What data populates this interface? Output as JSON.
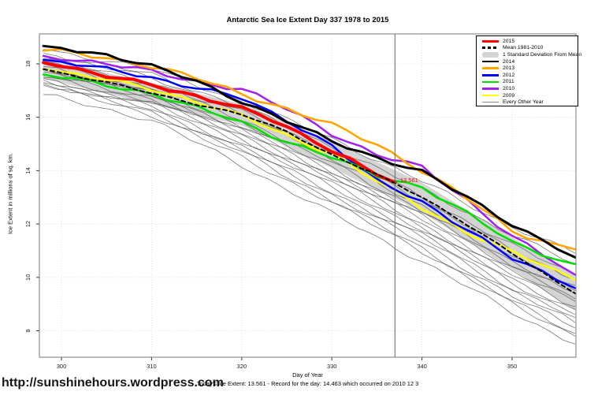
{
  "page": {
    "title": "Antarctic Sea Ice Extent Day 337 1978 to 2015",
    "site_url": "http://sunshinehours.wordpress.com",
    "footnote": "Today's Ice Extent: 13.561 - Record for the day: 14.463 which occurred on 2010 12 3"
  },
  "chart_data": {
    "type": "line",
    "title": "Antarctic Sea Ice Extent Day 337 1978 to 2015",
    "xlabel": "Day of Year",
    "ylabel": "Ice Extent in millions of sq. km.",
    "xlim": [
      297.5,
      357.5
    ],
    "ylim": [
      7.0,
      19.1
    ],
    "xticks": [
      300,
      310,
      320,
      330,
      340,
      350
    ],
    "yticks": [
      8,
      10,
      12,
      14,
      16,
      18
    ],
    "grid": "dotted",
    "marker_line_x": 337,
    "annotation": {
      "label": "13.561",
      "x": 337.4,
      "y": 13.63,
      "color": "#ff0000"
    },
    "legend_position": "top-right",
    "legend": [
      {
        "label": "2015",
        "color": "#ff0000",
        "swatch": "line"
      },
      {
        "label": "Mean 1981-2010",
        "color": "#000000",
        "swatch": "dashed"
      },
      {
        "label": "1 Standard Deviation From Mean",
        "color": "#d4d4d4",
        "swatch": "band"
      },
      {
        "label": "2014",
        "color": "#000000",
        "swatch": "med"
      },
      {
        "label": "2013",
        "color": "#ffa500",
        "swatch": "med"
      },
      {
        "label": "2012",
        "color": "#0000ff",
        "swatch": "med"
      },
      {
        "label": "2011",
        "color": "#00e000",
        "swatch": "med"
      },
      {
        "label": "2010",
        "color": "#a020f0",
        "swatch": "med"
      },
      {
        "label": "2009",
        "color": "#ffff00",
        "swatch": "med"
      },
      {
        "label": "Every Other Year",
        "color": "#8a8a8a",
        "swatch": "thin"
      }
    ],
    "band": {
      "name": "1 Standard Deviation From Mean",
      "color": "#d4d4d4",
      "x": [
        298,
        310,
        320,
        330,
        340,
        350,
        357
      ],
      "upper": [
        18.15,
        17.3,
        16.5,
        15.1,
        13.55,
        11.5,
        10.05
      ],
      "lower": [
        17.45,
        16.5,
        15.7,
        14.1,
        12.45,
        10.3,
        8.75
      ]
    },
    "series": [
      {
        "name": "2010",
        "color": "#a020f0",
        "width": 2.5,
        "dash": "",
        "wobble": 0.07,
        "x": [
          298,
          300,
          305,
          310,
          315,
          320,
          325,
          330,
          335,
          340,
          345,
          350,
          355,
          357
        ],
        "y": [
          18.3,
          18.25,
          18.0,
          17.7,
          17.35,
          17.05,
          16.3,
          15.4,
          14.6,
          14.1,
          12.9,
          11.55,
          10.5,
          10.1
        ]
      },
      {
        "name": "2009",
        "color": "#ffff00",
        "width": 2.5,
        "dash": "",
        "wobble": 0.06,
        "x": [
          298,
          300,
          305,
          310,
          315,
          320,
          325,
          330,
          335,
          340,
          345,
          350,
          355,
          357
        ],
        "y": [
          17.8,
          17.7,
          17.4,
          17.05,
          16.6,
          16.05,
          15.3,
          14.65,
          13.6,
          12.6,
          11.7,
          10.95,
          10.2,
          9.9
        ]
      },
      {
        "name": "2012",
        "color": "#0000ff",
        "width": 2.5,
        "dash": "",
        "wobble": 0.06,
        "x": [
          298,
          300,
          305,
          310,
          315,
          320,
          325,
          330,
          335,
          340,
          345,
          350,
          355,
          357
        ],
        "y": [
          18.15,
          18.05,
          17.8,
          17.5,
          17.1,
          16.7,
          15.9,
          14.95,
          13.6,
          12.85,
          11.8,
          10.7,
          9.95,
          9.6
        ]
      },
      {
        "name": "2011",
        "color": "#00e000",
        "width": 2.5,
        "dash": "",
        "wobble": 0.06,
        "x": [
          298,
          300,
          305,
          310,
          315,
          320,
          325,
          330,
          335,
          340,
          345,
          350,
          355,
          357
        ],
        "y": [
          17.6,
          17.5,
          17.2,
          16.9,
          16.35,
          15.8,
          15.1,
          14.5,
          13.8,
          13.4,
          12.4,
          11.3,
          10.7,
          10.5
        ]
      },
      {
        "name": "2013",
        "color": "#ffa500",
        "width": 2.6,
        "dash": "",
        "wobble": 0.07,
        "x": [
          298,
          300,
          305,
          310,
          315,
          320,
          325,
          330,
          335,
          340,
          345,
          350,
          355,
          357
        ],
        "y": [
          18.5,
          18.45,
          18.25,
          17.9,
          17.45,
          16.9,
          16.3,
          15.7,
          15.0,
          14.0,
          12.95,
          11.75,
          11.2,
          11.05
        ]
      },
      {
        "name": "2014",
        "color": "#000000",
        "width": 3,
        "dash": "",
        "wobble": 0.06,
        "x": [
          298,
          300,
          305,
          310,
          315,
          320,
          325,
          330,
          335,
          340,
          345,
          350,
          355,
          357
        ],
        "y": [
          18.67,
          18.6,
          18.35,
          17.9,
          17.35,
          16.6,
          15.85,
          15.1,
          14.5,
          13.95,
          13.0,
          12.0,
          11.1,
          10.75
        ]
      },
      {
        "name": "2015",
        "color": "#ff0000",
        "width": 4,
        "dash": "",
        "wobble": 0.05,
        "x": [
          298,
          300,
          302,
          305,
          308,
          310,
          312,
          315,
          318,
          320,
          322,
          325,
          328,
          330,
          332,
          335,
          337
        ],
        "y": [
          18.05,
          17.95,
          17.8,
          17.55,
          17.35,
          17.2,
          17.0,
          16.8,
          16.55,
          16.35,
          16.1,
          15.6,
          15.1,
          14.75,
          14.45,
          13.9,
          13.561
        ]
      },
      {
        "name": "Mean 1981-2010",
        "color": "#000000",
        "width": 2,
        "dash": "5,4",
        "wobble": 0.03,
        "x": [
          298,
          305,
          310,
          315,
          320,
          325,
          330,
          335,
          337,
          340,
          345,
          350,
          355,
          357
        ],
        "y": [
          17.8,
          17.3,
          16.9,
          16.5,
          16.1,
          15.45,
          14.6,
          13.85,
          13.5,
          13.0,
          12.0,
          10.9,
          9.8,
          9.4
        ]
      }
    ],
    "background_series": {
      "name": "Every Other Year",
      "color": "#4f4f4f",
      "width": 0.8,
      "opacity": 0.75,
      "x": [
        298,
        310,
        320,
        330,
        340,
        350,
        357
      ],
      "lines": [
        [
          18.55,
          17.8,
          16.6,
          15.2,
          13.6,
          11.9,
          10.9
        ],
        [
          18.4,
          17.6,
          16.4,
          14.9,
          13.3,
          11.6,
          10.5
        ],
        [
          18.3,
          17.5,
          16.2,
          14.7,
          13.0,
          11.2,
          10.1
        ],
        [
          18.2,
          17.3,
          16.1,
          14.6,
          12.9,
          11.0,
          9.9
        ],
        [
          18.1,
          17.2,
          15.9,
          14.4,
          12.7,
          10.8,
          9.7
        ],
        [
          18.0,
          17.1,
          15.8,
          14.3,
          12.5,
          10.6,
          9.5
        ],
        [
          17.9,
          17.0,
          15.7,
          14.1,
          12.4,
          10.5,
          9.4
        ],
        [
          17.85,
          16.9,
          15.6,
          14.0,
          12.3,
          10.4,
          9.2
        ],
        [
          17.8,
          16.85,
          15.5,
          13.9,
          12.2,
          10.2,
          9.1
        ],
        [
          17.7,
          16.8,
          15.4,
          13.8,
          12.0,
          10.1,
          8.9
        ],
        [
          17.6,
          16.7,
          15.3,
          13.7,
          11.9,
          9.9,
          8.8
        ],
        [
          17.5,
          16.6,
          15.2,
          13.5,
          11.8,
          9.8,
          8.6
        ],
        [
          17.45,
          16.5,
          15.1,
          13.4,
          11.6,
          9.6,
          8.5
        ],
        [
          17.4,
          16.4,
          14.9,
          13.2,
          11.5,
          9.5,
          8.3
        ],
        [
          17.3,
          16.3,
          14.8,
          13.1,
          11.3,
          9.3,
          8.1
        ],
        [
          17.25,
          16.2,
          14.7,
          12.9,
          11.1,
          9.1,
          7.9
        ],
        [
          17.2,
          16.1,
          14.5,
          12.8,
          11.0,
          9.0,
          7.8
        ],
        [
          16.85,
          15.9,
          14.2,
          12.4,
          10.6,
          8.7,
          7.5
        ]
      ]
    }
  }
}
